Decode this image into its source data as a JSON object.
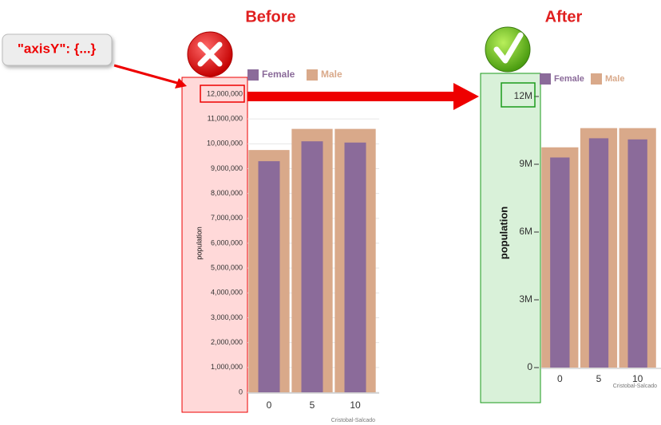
{
  "annotation": "\"axisY\": {...}",
  "chart_data": [
    {
      "type": "bar",
      "title": "Before",
      "y_label": "population",
      "credit": "Cristobal-Salcado",
      "categories": [
        "0",
        "5",
        "10"
      ],
      "series": [
        {
          "name": "Female",
          "color": "#8b6b9a",
          "values": [
            9300000,
            10100000,
            10050000
          ]
        },
        {
          "name": "Male",
          "color": "#d9a98a",
          "values": [
            9750000,
            10600000,
            10600000
          ]
        }
      ],
      "ylim": [
        0,
        12000000
      ],
      "yticks": [
        0,
        {
          "value": 1000000,
          "label": "1,000,000"
        },
        {
          "value": 2000000,
          "label": "2,000,000"
        },
        {
          "value": 3000000,
          "label": "3,000,000"
        },
        {
          "value": 4000000,
          "label": "4,000,000"
        },
        {
          "value": 5000000,
          "label": "5,000,000"
        },
        {
          "value": 6000000,
          "label": "6,000,000"
        },
        {
          "value": 7000000,
          "label": "7,000,000"
        },
        {
          "value": 8000000,
          "label": "8,000,000"
        },
        {
          "value": 9000000,
          "label": "9,000,000"
        },
        {
          "value": 10000000,
          "label": "10,000,000"
        },
        {
          "value": 11000000,
          "label": "11,000,000"
        },
        {
          "value": 12000000,
          "label": "12,000,000"
        }
      ],
      "grid": true
    },
    {
      "type": "bar",
      "title": "After",
      "y_label": "population",
      "credit": "Cristobal-Salcado",
      "categories": [
        "0",
        "5",
        "10"
      ],
      "series": [
        {
          "name": "Female",
          "color": "#8b6b9a",
          "values": [
            9300000,
            10150000,
            10100000
          ]
        },
        {
          "name": "Male",
          "color": "#d9a98a",
          "values": [
            9750000,
            10600000,
            10600000
          ]
        }
      ],
      "ylim": [
        0,
        12000000
      ],
      "yticks": [
        0,
        {
          "value": 3000000,
          "label": "3M"
        },
        {
          "value": 6000000,
          "label": "6M"
        },
        {
          "value": 9000000,
          "label": "9M"
        },
        {
          "value": 12000000,
          "label": "12M"
        }
      ],
      "grid": false
    }
  ]
}
